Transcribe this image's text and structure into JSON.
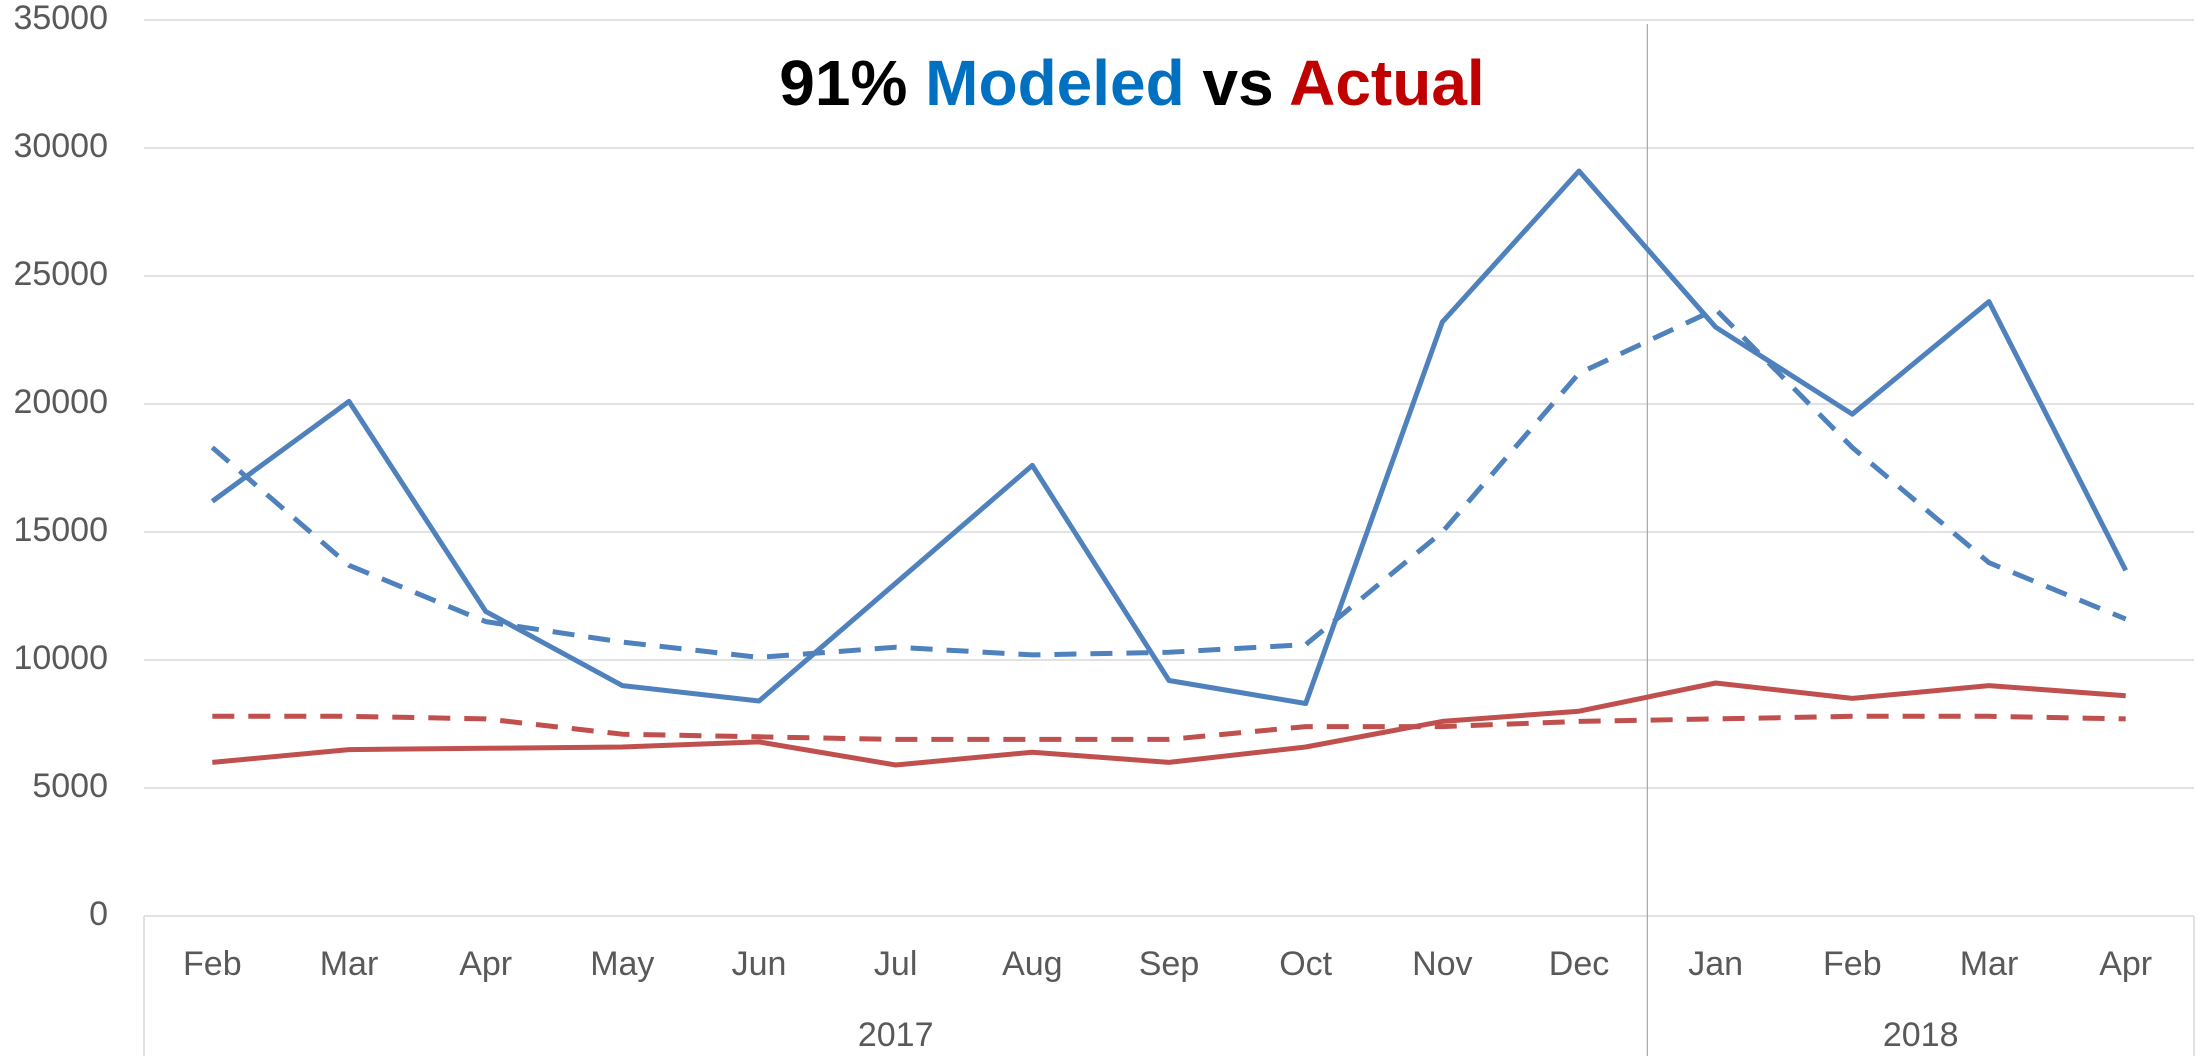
{
  "chart_data": {
    "type": "line",
    "title_parts": [
      {
        "text": "91%",
        "color": "#000000"
      },
      {
        "text": "Modeled",
        "color": "#0070c0"
      },
      {
        "text": "vs",
        "color": "#000000"
      },
      {
        "text": "Actual",
        "color": "#c00000"
      }
    ],
    "categories": [
      "Feb",
      "Mar",
      "Apr",
      "May",
      "Jun",
      "Jul",
      "Aug",
      "Sep",
      "Oct",
      "Nov",
      "Dec",
      "Jan",
      "Feb",
      "Mar",
      "Apr"
    ],
    "groups": [
      {
        "label": "2017",
        "span": 11
      },
      {
        "label": "2018",
        "span": 4
      }
    ],
    "series": [
      {
        "color": "#4f81bd",
        "dash": false,
        "values": [
          16200,
          20100,
          11900,
          9000,
          8400,
          13000,
          17600,
          9200,
          8300,
          23200,
          29100,
          23000,
          19600,
          24000,
          13500
        ]
      },
      {
        "color": "#4f81bd",
        "dash": true,
        "values": [
          18300,
          13700,
          11500,
          10700,
          10100,
          10500,
          10200,
          10300,
          10600,
          15000,
          21200,
          23700,
          18300,
          13800,
          11600
        ]
      },
      {
        "color": "#c0504d",
        "dash": false,
        "values": [
          6000,
          6500,
          6550,
          6600,
          6800,
          5900,
          6400,
          6000,
          6600,
          7600,
          8000,
          9100,
          8500,
          9000,
          8600
        ]
      },
      {
        "color": "#c0504d",
        "dash": true,
        "values": [
          7800,
          7800,
          7700,
          7100,
          7000,
          6900,
          6900,
          6900,
          7400,
          7400,
          7600,
          7700,
          7800,
          7800,
          7700
        ]
      }
    ],
    "ylim": [
      0,
      35000
    ],
    "yticks": [
      0,
      5000,
      10000,
      15000,
      20000,
      25000,
      30000,
      35000
    ],
    "grid": true
  }
}
